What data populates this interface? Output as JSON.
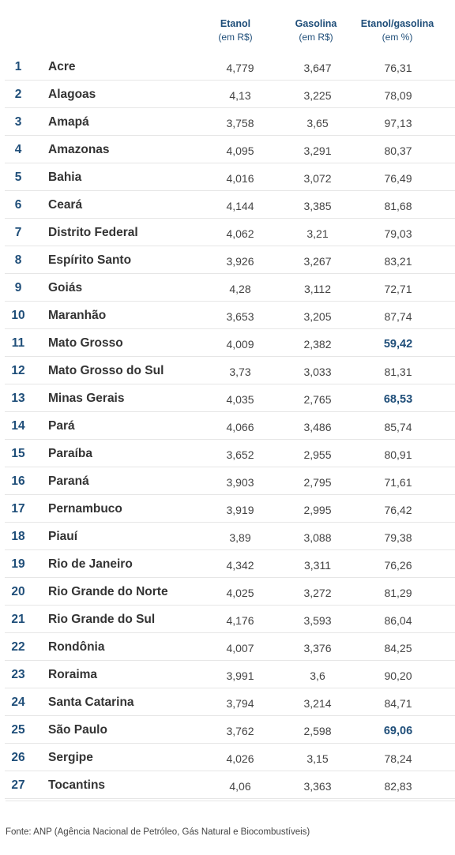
{
  "chart_data": {
    "type": "table",
    "columns": [
      {
        "title": "Etanol",
        "unit": "(em R$)"
      },
      {
        "title": "Gasolina",
        "unit": "(em R$)"
      },
      {
        "title": "Etanol/gasolina",
        "unit": "(em %)"
      }
    ],
    "rows": [
      {
        "n": "1",
        "state": "Acre",
        "etanol": "4,779",
        "gasolina": "3,647",
        "ratio": "76,31",
        "highlight": false
      },
      {
        "n": "2",
        "state": "Alagoas",
        "etanol": "4,13",
        "gasolina": "3,225",
        "ratio": "78,09",
        "highlight": false
      },
      {
        "n": "3",
        "state": "Amapá",
        "etanol": "3,758",
        "gasolina": "3,65",
        "ratio": "97,13",
        "highlight": false
      },
      {
        "n": "4",
        "state": "Amazonas",
        "etanol": "4,095",
        "gasolina": "3,291",
        "ratio": "80,37",
        "highlight": false
      },
      {
        "n": "5",
        "state": "Bahia",
        "etanol": "4,016",
        "gasolina": "3,072",
        "ratio": "76,49",
        "highlight": false
      },
      {
        "n": "6",
        "state": "Ceará",
        "etanol": "4,144",
        "gasolina": "3,385",
        "ratio": "81,68",
        "highlight": false
      },
      {
        "n": "7",
        "state": "Distrito Federal",
        "etanol": "4,062",
        "gasolina": "3,21",
        "ratio": "79,03",
        "highlight": false
      },
      {
        "n": "8",
        "state": "Espírito Santo",
        "etanol": "3,926",
        "gasolina": "3,267",
        "ratio": "83,21",
        "highlight": false
      },
      {
        "n": "9",
        "state": "Goiás",
        "etanol": "4,28",
        "gasolina": "3,112",
        "ratio": "72,71",
        "highlight": false
      },
      {
        "n": "10",
        "state": "Maranhão",
        "etanol": "3,653",
        "gasolina": "3,205",
        "ratio": "87,74",
        "highlight": false
      },
      {
        "n": "11",
        "state": "Mato Grosso",
        "etanol": "4,009",
        "gasolina": "2,382",
        "ratio": "59,42",
        "highlight": true
      },
      {
        "n": "12",
        "state": "Mato Grosso do Sul",
        "etanol": "3,73",
        "gasolina": "3,033",
        "ratio": "81,31",
        "highlight": false
      },
      {
        "n": "13",
        "state": "Minas Gerais",
        "etanol": "4,035",
        "gasolina": "2,765",
        "ratio": "68,53",
        "highlight": true
      },
      {
        "n": "14",
        "state": "Pará",
        "etanol": "4,066",
        "gasolina": "3,486",
        "ratio": "85,74",
        "highlight": false
      },
      {
        "n": "15",
        "state": "Paraíba",
        "etanol": "3,652",
        "gasolina": "2,955",
        "ratio": "80,91",
        "highlight": false
      },
      {
        "n": "16",
        "state": "Paraná",
        "etanol": "3,903",
        "gasolina": "2,795",
        "ratio": "71,61",
        "highlight": false
      },
      {
        "n": "17",
        "state": "Pernambuco",
        "etanol": "3,919",
        "gasolina": "2,995",
        "ratio": "76,42",
        "highlight": false
      },
      {
        "n": "18",
        "state": "Piauí",
        "etanol": "3,89",
        "gasolina": "3,088",
        "ratio": "79,38",
        "highlight": false
      },
      {
        "n": "19",
        "state": "Rio de Janeiro",
        "etanol": "4,342",
        "gasolina": "3,311",
        "ratio": "76,26",
        "highlight": false
      },
      {
        "n": "20",
        "state": "Rio Grande do Norte",
        "etanol": "4,025",
        "gasolina": "3,272",
        "ratio": "81,29",
        "highlight": false
      },
      {
        "n": "21",
        "state": "Rio Grande do Sul",
        "etanol": "4,176",
        "gasolina": "3,593",
        "ratio": "86,04",
        "highlight": false
      },
      {
        "n": "22",
        "state": "Rondônia",
        "etanol": "4,007",
        "gasolina": "3,376",
        "ratio": "84,25",
        "highlight": false
      },
      {
        "n": "23",
        "state": "Roraima",
        "etanol": "3,991",
        "gasolina": "3,6",
        "ratio": "90,20",
        "highlight": false
      },
      {
        "n": "24",
        "state": "Santa Catarina",
        "etanol": "3,794",
        "gasolina": "3,214",
        "ratio": "84,71",
        "highlight": false
      },
      {
        "n": "25",
        "state": "São Paulo",
        "etanol": "3,762",
        "gasolina": "2,598",
        "ratio": "69,06",
        "highlight": true
      },
      {
        "n": "26",
        "state": "Sergipe",
        "etanol": "4,026",
        "gasolina": "3,15",
        "ratio": "78,24",
        "highlight": false
      },
      {
        "n": "27",
        "state": "Tocantins",
        "etanol": "4,06",
        "gasolina": "3,363",
        "ratio": "82,83",
        "highlight": false
      }
    ],
    "highlight_color": "#1f4e79",
    "source": "Fonte: ANP (Agência Nacional de Petróleo, Gás Natural e Biocombustíveis)"
  }
}
